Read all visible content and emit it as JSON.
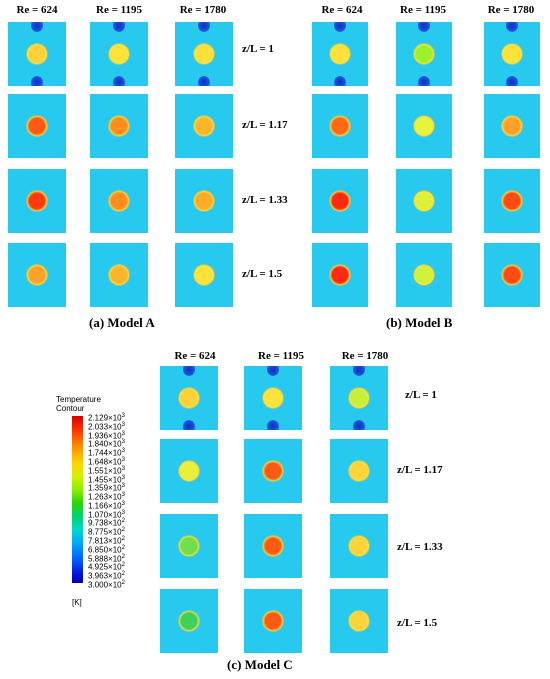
{
  "panels": [
    {
      "id": "A",
      "caption": "(a) Model A",
      "re_headers": [
        "Re = 624",
        "Re = 1195",
        "Re = 1780"
      ],
      "row_labels": [
        "z/L = 1",
        "z/L = 1.17",
        "z/L = 1.33",
        "z/L = 1.5"
      ],
      "tile_colors": [
        [
          "#ffd13a",
          "#ffe23a",
          "#ffe03a"
        ],
        [
          "#ff5a14",
          "#ff8c1e",
          "#ffb52a"
        ],
        [
          "#ff3a10",
          "#ff8c1e",
          "#ffad28"
        ],
        [
          "#ffa22a",
          "#ffb52a",
          "#ffe23a"
        ]
      ]
    },
    {
      "id": "B",
      "caption": "(b) Model B",
      "re_headers": [
        "Re = 624",
        "Re = 1195",
        "Re = 1780"
      ],
      "row_labels": [
        "z/L = 1",
        "z/L = 1.17",
        "z/L = 1.33",
        "z/L = 1.5"
      ],
      "tile_colors": [
        [
          "#ffe23a",
          "#9ef02a",
          "#ffe23a"
        ],
        [
          "#ff6a18",
          "#e6f53a",
          "#ffa02a"
        ],
        [
          "#ff2a10",
          "#ddf03a",
          "#ff4a12"
        ],
        [
          "#ff2a10",
          "#d2f03a",
          "#ff4a12"
        ]
      ]
    },
    {
      "id": "C",
      "caption": "(c) Model C",
      "re_headers": [
        "Re = 624",
        "Re = 1195",
        "Re = 1780"
      ],
      "row_labels": [
        "z/L = 1",
        "z/L = 1.17",
        "z/L = 1.33",
        "z/L = 1.5"
      ],
      "tile_colors": [
        [
          "#ffd13a",
          "#ffe23a",
          "#c8f03a"
        ],
        [
          "#e9f03a",
          "#ff5a14",
          "#ffd33a"
        ],
        [
          "#6ee04a",
          "#ff5a14",
          "#ffd33a"
        ],
        [
          "#3ed05a",
          "#ff5a14",
          "#ffd33a"
        ]
      ]
    }
  ],
  "legend": {
    "title": "Temperature",
    "subtitle": "Contour",
    "unit": "[K]",
    "ticks": [
      {
        "m": "2.129",
        "e": "3"
      },
      {
        "m": "2.033",
        "e": "3"
      },
      {
        "m": "1.936",
        "e": "3"
      },
      {
        "m": "1.840",
        "e": "3"
      },
      {
        "m": "1.744",
        "e": "3"
      },
      {
        "m": "1.648",
        "e": "3"
      },
      {
        "m": "1.551",
        "e": "3"
      },
      {
        "m": "1.455",
        "e": "3"
      },
      {
        "m": "1.359",
        "e": "3"
      },
      {
        "m": "1.263",
        "e": "3"
      },
      {
        "m": "1.166",
        "e": "3"
      },
      {
        "m": "1.070",
        "e": "3"
      },
      {
        "m": "9.738",
        "e": "2"
      },
      {
        "m": "8.775",
        "e": "2"
      },
      {
        "m": "7.813",
        "e": "2"
      },
      {
        "m": "6.850",
        "e": "2"
      },
      {
        "m": "5.888",
        "e": "2"
      },
      {
        "m": "4.925",
        "e": "2"
      },
      {
        "m": "3.963",
        "e": "2"
      },
      {
        "m": "3.000",
        "e": "2"
      }
    ]
  }
}
